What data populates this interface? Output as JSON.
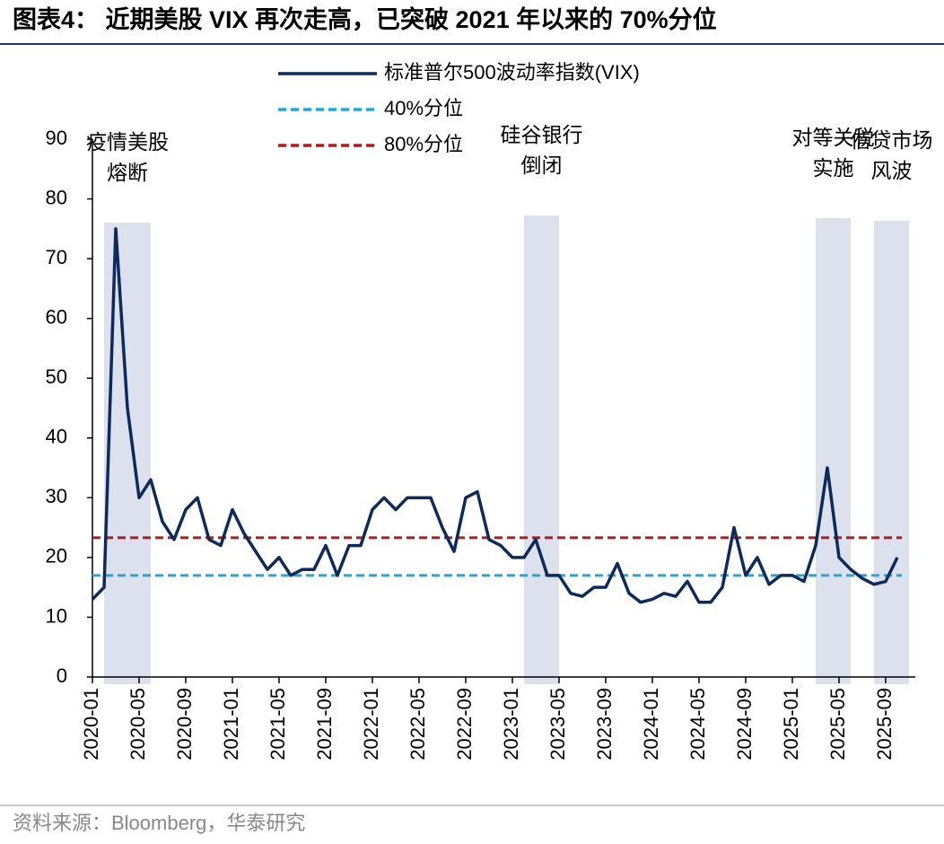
{
  "chart_data": {
    "type": "line",
    "title": "图表4： 近期美股 VIX 再次走高，已突破 2021 年以来的 70%分位",
    "source": "资料来源：Bloomberg，华泰研究",
    "x": [
      "2020-01",
      "2020-02",
      "2020-03",
      "2020-04",
      "2020-05",
      "2020-06",
      "2020-07",
      "2020-08",
      "2020-09",
      "2020-10",
      "2020-11",
      "2020-12",
      "2021-01",
      "2021-02",
      "2021-03",
      "2021-04",
      "2021-05",
      "2021-06",
      "2021-07",
      "2021-08",
      "2021-09",
      "2021-10",
      "2021-11",
      "2021-12",
      "2022-01",
      "2022-02",
      "2022-03",
      "2022-04",
      "2022-05",
      "2022-06",
      "2022-07",
      "2022-08",
      "2022-09",
      "2022-10",
      "2022-11",
      "2022-12",
      "2023-01",
      "2023-02",
      "2023-03",
      "2023-04",
      "2023-05",
      "2023-06",
      "2023-07",
      "2023-08",
      "2023-09",
      "2023-10",
      "2023-11",
      "2023-12",
      "2024-01",
      "2024-02",
      "2024-03",
      "2024-04",
      "2024-05",
      "2024-06",
      "2024-07",
      "2024-08",
      "2024-09",
      "2024-10",
      "2024-11",
      "2024-12",
      "2025-01",
      "2025-02",
      "2025-03",
      "2025-04",
      "2025-05",
      "2025-06",
      "2025-07",
      "2025-08",
      "2025-09",
      "2025-10"
    ],
    "series": [
      {
        "name": "标准普尔500波动率指数(VIX)",
        "color": "#0d2a5c",
        "values": [
          13,
          15,
          75,
          45,
          30,
          33,
          26,
          23,
          28,
          30,
          23,
          22,
          28,
          24,
          21,
          18,
          20,
          17,
          18,
          18,
          22,
          17,
          22,
          22,
          28,
          30,
          28,
          30,
          30,
          30,
          25,
          21,
          30,
          31,
          23,
          22,
          20,
          20,
          23,
          17,
          17,
          14,
          13.5,
          15,
          15,
          19,
          14,
          12.5,
          13,
          14,
          13.5,
          16,
          12.5,
          12.5,
          15,
          25,
          17,
          20,
          15.5,
          17,
          17,
          16,
          22,
          35,
          20,
          18,
          16.5,
          15.5,
          16,
          20
        ]
      }
    ],
    "reference_lines": [
      {
        "name": "40%分位",
        "color": "#1fa8d8",
        "value": 17
      },
      {
        "name": "80%分位",
        "color": "#b01c1c",
        "value": 23.3
      }
    ],
    "events": [
      {
        "lines": [
          "疫情美股",
          "熔断"
        ],
        "start": "2020-02",
        "end": "2020-06"
      },
      {
        "lines": [
          "硅谷银行",
          "倒闭"
        ],
        "start": "2023-02",
        "end": "2023-05"
      },
      {
        "lines": [
          "对等关税",
          "实施"
        ],
        "start": "2025-03",
        "end": "2025-06"
      },
      {
        "lines": [
          "信贷市场",
          "风波"
        ],
        "start": "2025-08",
        "end": "2025-11"
      }
    ],
    "ylim": [
      0,
      90
    ],
    "yticks": [
      0,
      10,
      20,
      30,
      40,
      50,
      60,
      70,
      80,
      90
    ],
    "xticks": [
      "2020-01",
      "2020-05",
      "2020-09",
      "2021-01",
      "2021-05",
      "2021-09",
      "2022-01",
      "2022-05",
      "2022-09",
      "2023-01",
      "2023-05",
      "2023-09",
      "2024-01",
      "2024-05",
      "2024-09",
      "2025-01",
      "2025-05",
      "2025-09"
    ]
  }
}
